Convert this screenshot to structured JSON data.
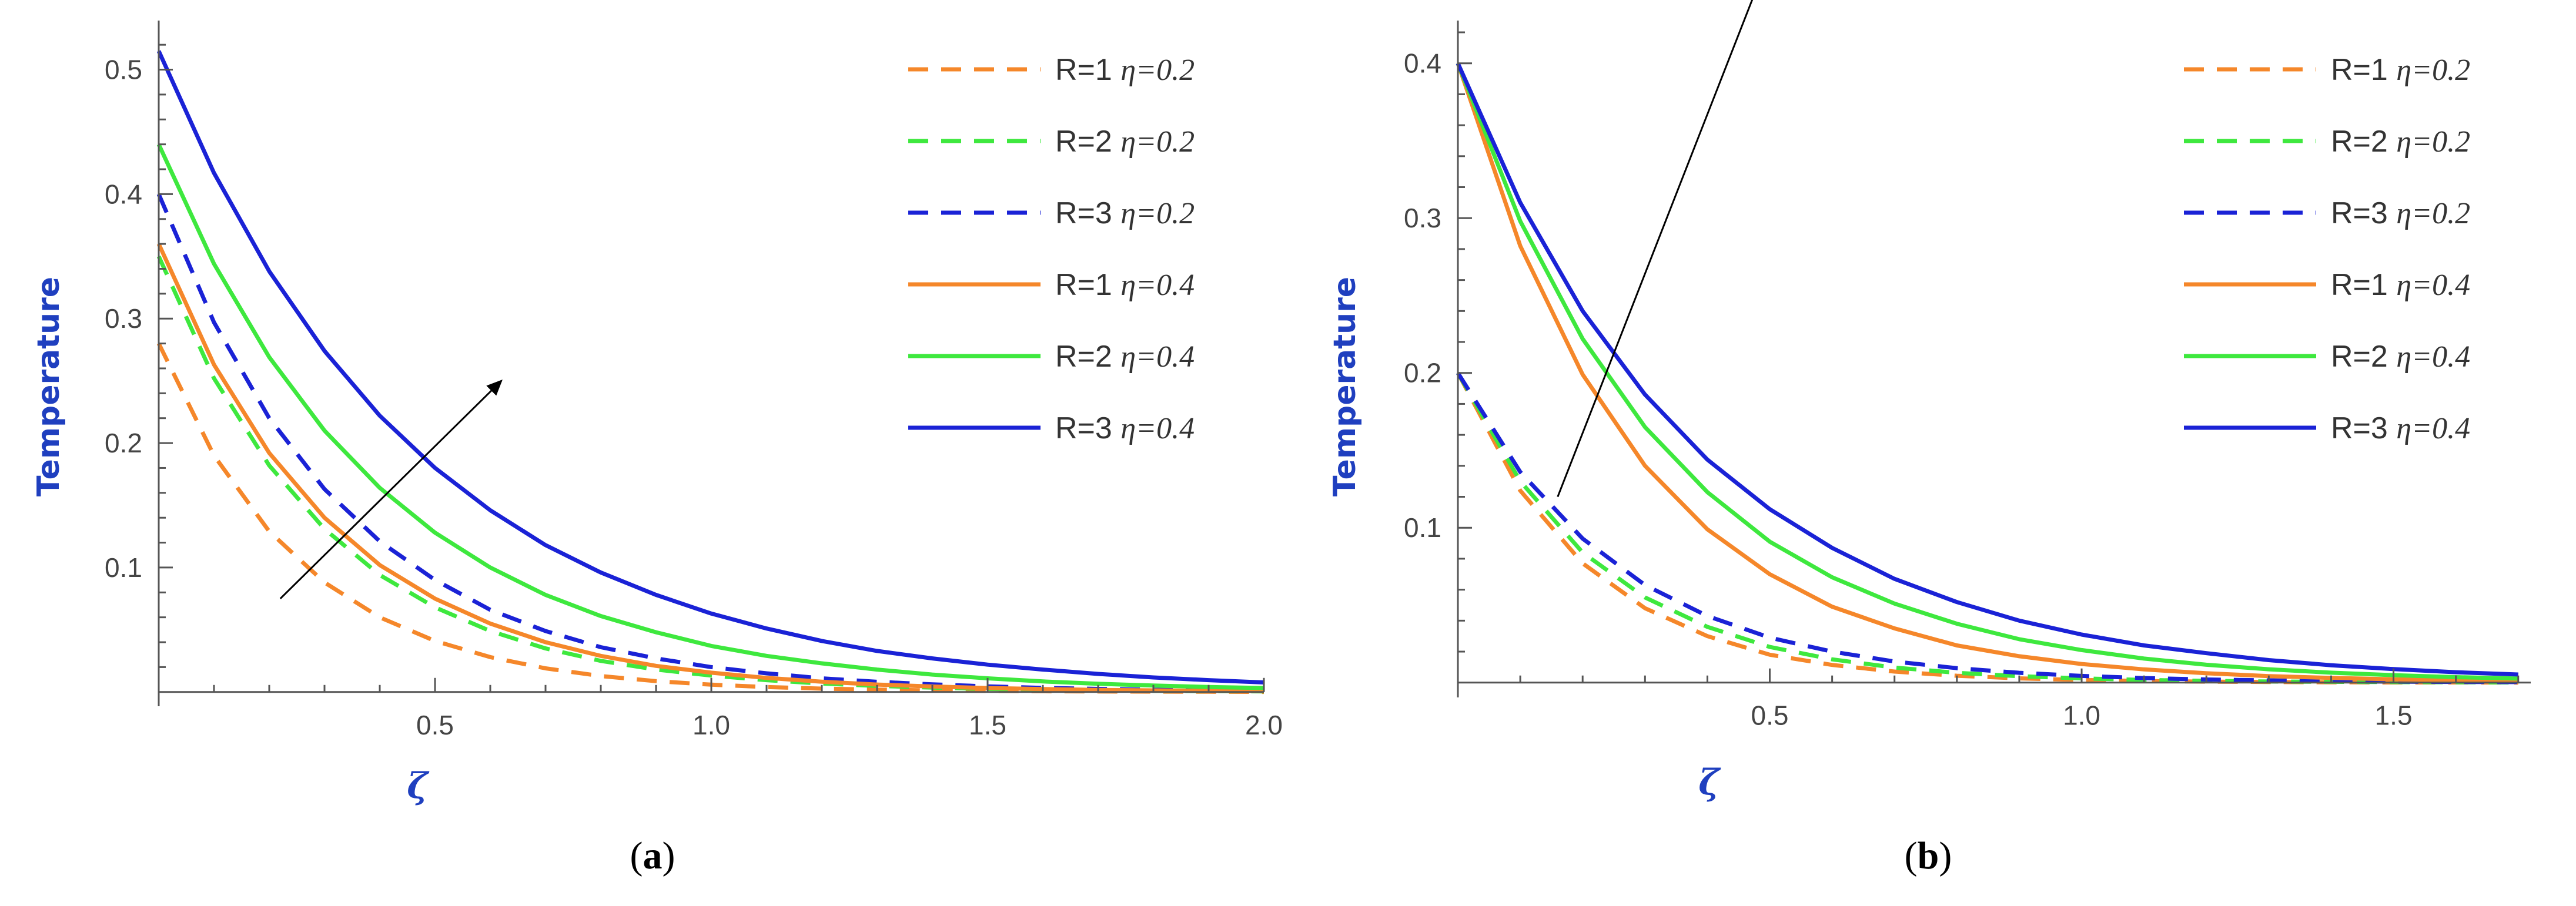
{
  "chart_data": [
    {
      "type": "line",
      "panel": "a",
      "caption": {
        "open": "(",
        "letter": "a",
        "close": ")"
      },
      "title": "",
      "xlabel": "ζ",
      "ylabel": "Temperature",
      "xlim": [
        0,
        2.0
      ],
      "ylim": [
        -0.002,
        0.53
      ],
      "xticks": [
        {
          "value": 0.5,
          "label": "0.5"
        },
        {
          "value": 1.0,
          "label": "1.0"
        },
        {
          "value": 1.5,
          "label": "1.5"
        },
        {
          "value": 2.0,
          "label": "2.0"
        }
      ],
      "yticks": [
        {
          "value": 0.1,
          "label": "0.1"
        },
        {
          "value": 0.2,
          "label": "0.2"
        },
        {
          "value": 0.3,
          "label": "0.3"
        },
        {
          "value": 0.4,
          "label": "0.4"
        },
        {
          "value": 0.5,
          "label": "0.5"
        }
      ],
      "legend_position": "top-right",
      "arrow": {
        "from": [
          0.22,
          0.075
        ],
        "to": [
          0.62,
          0.25
        ]
      },
      "series": [
        {
          "name_r": "R=1",
          "name_eta": "η=0.2",
          "color": "#f5872a",
          "dash": true,
          "x": [
            0,
            0.1,
            0.2,
            0.3,
            0.4,
            0.5,
            0.6,
            0.7,
            0.8,
            0.9,
            1.0,
            1.1,
            1.2,
            1.3,
            1.4,
            1.5,
            1.6,
            1.7,
            1.8,
            1.9,
            2.0
          ],
          "y": [
            0.28,
            0.19,
            0.129,
            0.088,
            0.06,
            0.041,
            0.028,
            0.019,
            0.0128,
            0.0087,
            0.0059,
            0.004,
            0.0027,
            0.0019,
            0.0013,
            0.0009,
            0.0006,
            0.0004,
            0.0003,
            0.0002,
            0.0001
          ]
        },
        {
          "name_r": "R=2",
          "name_eta": "η=0.2",
          "color": "#3ee83e",
          "dash": true,
          "x": [
            0,
            0.1,
            0.2,
            0.3,
            0.4,
            0.5,
            0.6,
            0.7,
            0.8,
            0.9,
            1.0,
            1.1,
            1.2,
            1.3,
            1.4,
            1.5,
            1.6,
            1.7,
            1.8,
            1.9,
            2.0
          ],
          "y": [
            0.35,
            0.252,
            0.182,
            0.131,
            0.094,
            0.068,
            0.049,
            0.035,
            0.025,
            0.018,
            0.0132,
            0.0095,
            0.0068,
            0.0049,
            0.0035,
            0.0025,
            0.0018,
            0.0013,
            0.0009,
            0.0007,
            0.0005
          ]
        },
        {
          "name_r": "R=3",
          "name_eta": "η=0.2",
          "color": "#1a22d6",
          "dash": true,
          "x": [
            0,
            0.1,
            0.2,
            0.3,
            0.4,
            0.5,
            0.6,
            0.7,
            0.8,
            0.9,
            1.0,
            1.1,
            1.2,
            1.3,
            1.4,
            1.5,
            1.6,
            1.7,
            1.8,
            1.9,
            2.0
          ],
          "y": [
            0.4,
            0.297,
            0.22,
            0.163,
            0.121,
            0.09,
            0.066,
            0.049,
            0.036,
            0.027,
            0.02,
            0.015,
            0.011,
            0.0082,
            0.0061,
            0.0045,
            0.0033,
            0.0025,
            0.0018,
            0.0014,
            0.001
          ]
        },
        {
          "name_r": "R=1",
          "name_eta": "η=0.4",
          "color": "#f5872a",
          "dash": false,
          "x": [
            0,
            0.1,
            0.2,
            0.3,
            0.4,
            0.5,
            0.6,
            0.7,
            0.8,
            0.9,
            1.0,
            1.1,
            1.2,
            1.3,
            1.4,
            1.5,
            1.6,
            1.7,
            1.8,
            1.9,
            2.0
          ],
          "y": [
            0.36,
            0.263,
            0.192,
            0.14,
            0.102,
            0.075,
            0.055,
            0.04,
            0.029,
            0.021,
            0.0155,
            0.0113,
            0.0083,
            0.006,
            0.0044,
            0.0032,
            0.0024,
            0.0017,
            0.0013,
            0.0009,
            0.0007
          ]
        },
        {
          "name_r": "R=2",
          "name_eta": "η=0.4",
          "color": "#3ee83e",
          "dash": false,
          "x": [
            0,
            0.1,
            0.2,
            0.3,
            0.4,
            0.5,
            0.6,
            0.7,
            0.8,
            0.9,
            1.0,
            1.1,
            1.2,
            1.3,
            1.4,
            1.5,
            1.6,
            1.7,
            1.8,
            1.9,
            2.0
          ],
          "y": [
            0.44,
            0.344,
            0.269,
            0.21,
            0.164,
            0.128,
            0.1,
            0.078,
            0.061,
            0.048,
            0.037,
            0.029,
            0.023,
            0.018,
            0.014,
            0.011,
            0.0085,
            0.0066,
            0.0052,
            0.004,
            0.0032
          ]
        },
        {
          "name_r": "R=3",
          "name_eta": "η=0.4",
          "color": "#1a22d6",
          "dash": false,
          "x": [
            0,
            0.1,
            0.2,
            0.3,
            0.4,
            0.5,
            0.6,
            0.7,
            0.8,
            0.9,
            1.0,
            1.1,
            1.2,
            1.3,
            1.4,
            1.5,
            1.6,
            1.7,
            1.8,
            1.9,
            2.0
          ],
          "y": [
            0.515,
            0.417,
            0.338,
            0.274,
            0.222,
            0.18,
            0.146,
            0.118,
            0.096,
            0.078,
            0.063,
            0.051,
            0.041,
            0.033,
            0.027,
            0.022,
            0.018,
            0.0145,
            0.0117,
            0.0095,
            0.0077
          ]
        }
      ]
    },
    {
      "type": "line",
      "panel": "b",
      "caption": {
        "open": "(",
        "letter": "b",
        "close": ")"
      },
      "title": "",
      "xlabel": "ζ",
      "ylabel": "Temperature",
      "xlim": [
        0,
        1.72
      ],
      "ylim": [
        -0.002,
        0.42
      ],
      "xticks": [
        {
          "value": 0.5,
          "label": "0.5"
        },
        {
          "value": 1.0,
          "label": "1.0"
        },
        {
          "value": 1.5,
          "label": "1.5"
        }
      ],
      "yticks": [
        {
          "value": 0.1,
          "label": "0.1"
        },
        {
          "value": 0.2,
          "label": "0.2"
        },
        {
          "value": 0.3,
          "label": "0.3"
        },
        {
          "value": 0.4,
          "label": "0.4"
        }
      ],
      "legend_position": "top-right",
      "arrow": {
        "from": [
          0.16,
          0.12
        ],
        "to": [
          0.5,
          0.47
        ]
      },
      "series": [
        {
          "name_r": "R=1",
          "name_eta": "η=0.2",
          "color": "#f5872a",
          "dash": true,
          "x": [
            0,
            0.1,
            0.2,
            0.3,
            0.4,
            0.5,
            0.6,
            0.7,
            0.8,
            0.9,
            1.0,
            1.1,
            1.2,
            1.3,
            1.4,
            1.5,
            1.6,
            1.7
          ],
          "y": [
            0.2,
            0.124,
            0.077,
            0.048,
            0.03,
            0.018,
            0.0114,
            0.0071,
            0.0044,
            0.0027,
            0.0017,
            0.001,
            0.0006,
            0.0004,
            0.0002,
            0.0001,
            0.0001,
            0.0
          ]
        },
        {
          "name_r": "R=2",
          "name_eta": "η=0.2",
          "color": "#3ee83e",
          "dash": true,
          "x": [
            0,
            0.1,
            0.2,
            0.3,
            0.4,
            0.5,
            0.6,
            0.7,
            0.8,
            0.9,
            1.0,
            1.1,
            1.2,
            1.3,
            1.4,
            1.5,
            1.6,
            1.7
          ],
          "y": [
            0.2,
            0.13,
            0.084,
            0.055,
            0.036,
            0.023,
            0.015,
            0.0097,
            0.0063,
            0.0041,
            0.0027,
            0.0017,
            0.0011,
            0.0007,
            0.0005,
            0.0003,
            0.0002,
            0.0001
          ]
        },
        {
          "name_r": "R=3",
          "name_eta": "η=0.2",
          "color": "#1a22d6",
          "dash": true,
          "x": [
            0,
            0.1,
            0.2,
            0.3,
            0.4,
            0.5,
            0.6,
            0.7,
            0.8,
            0.9,
            1.0,
            1.1,
            1.2,
            1.3,
            1.4,
            1.5,
            1.6,
            1.7
          ],
          "y": [
            0.2,
            0.136,
            0.093,
            0.063,
            0.043,
            0.029,
            0.02,
            0.0136,
            0.0093,
            0.0063,
            0.0043,
            0.0029,
            0.002,
            0.0014,
            0.0009,
            0.0006,
            0.0004,
            0.0003
          ]
        },
        {
          "name_r": "R=1",
          "name_eta": "η=0.4",
          "color": "#f5872a",
          "dash": false,
          "x": [
            0,
            0.1,
            0.2,
            0.3,
            0.4,
            0.5,
            0.6,
            0.7,
            0.8,
            0.9,
            1.0,
            1.1,
            1.2,
            1.3,
            1.4,
            1.5,
            1.6,
            1.7
          ],
          "y": [
            0.4,
            0.282,
            0.199,
            0.14,
            0.099,
            0.07,
            0.049,
            0.035,
            0.024,
            0.017,
            0.012,
            0.0085,
            0.006,
            0.0042,
            0.003,
            0.0021,
            0.0015,
            0.001
          ]
        },
        {
          "name_r": "R=2",
          "name_eta": "η=0.4",
          "color": "#3ee83e",
          "dash": false,
          "x": [
            0,
            0.1,
            0.2,
            0.3,
            0.4,
            0.5,
            0.6,
            0.7,
            0.8,
            0.9,
            1.0,
            1.1,
            1.2,
            1.3,
            1.4,
            1.5,
            1.6,
            1.7
          ],
          "y": [
            0.4,
            0.298,
            0.222,
            0.165,
            0.123,
            0.091,
            0.068,
            0.051,
            0.038,
            0.028,
            0.021,
            0.0155,
            0.0115,
            0.0086,
            0.0064,
            0.0048,
            0.0035,
            0.0026
          ]
        },
        {
          "name_r": "R=3",
          "name_eta": "η=0.4",
          "color": "#1a22d6",
          "dash": false,
          "x": [
            0,
            0.1,
            0.2,
            0.3,
            0.4,
            0.5,
            0.6,
            0.7,
            0.8,
            0.9,
            1.0,
            1.1,
            1.2,
            1.3,
            1.4,
            1.5,
            1.6,
            1.7
          ],
          "y": [
            0.4,
            0.31,
            0.24,
            0.186,
            0.144,
            0.112,
            0.087,
            0.067,
            0.052,
            0.04,
            0.031,
            0.024,
            0.019,
            0.0145,
            0.0112,
            0.0087,
            0.0067,
            0.0052
          ]
        }
      ]
    }
  ]
}
